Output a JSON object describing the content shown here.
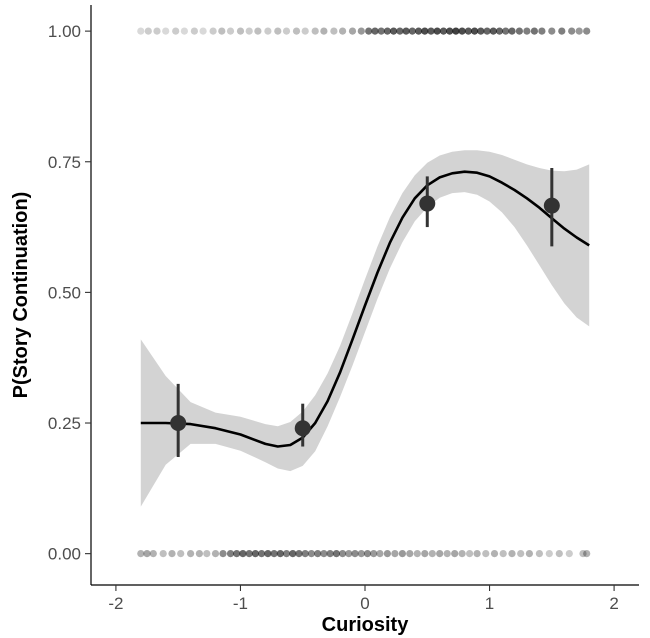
{
  "chart_data": {
    "type": "scatter",
    "title": "",
    "xlabel": "Curiosity",
    "ylabel": "P(Story Continuation)",
    "xlim": [
      -2.2,
      2.2
    ],
    "ylim": [
      -0.06,
      1.05
    ],
    "x_ticks": [
      -2,
      -1,
      0,
      1,
      2
    ],
    "x_tick_labels": [
      "-2",
      "-1",
      "0",
      "1",
      "2"
    ],
    "y_ticks": [
      0.0,
      0.25,
      0.5,
      0.75,
      1.0
    ],
    "y_tick_labels": [
      "0.00",
      "0.25",
      "0.50",
      "0.75",
      "1.00"
    ],
    "grid": false,
    "legend": "none",
    "colors": {
      "points": "#000000",
      "smooth_line": "#000000",
      "ribbon": "#d3d3d3",
      "bin_means": "#333333",
      "axis": "#000000",
      "tick_text": "#4d4d4d"
    },
    "series": [
      {
        "kind": "raw-observations-at-0",
        "x": [
          -1.8,
          -1.75,
          -1.7,
          -1.62,
          -1.55,
          -1.48,
          -1.4,
          -1.33,
          -1.27,
          -1.2,
          -1.14,
          -1.08,
          -1.03,
          -0.98,
          -0.93,
          -0.88,
          -0.83,
          -0.78,
          -0.73,
          -0.68,
          -0.63,
          -0.58,
          -0.53,
          -0.48,
          -0.43,
          -0.38,
          -0.33,
          -0.28,
          -0.23,
          -0.18,
          -0.13,
          -0.08,
          -0.03,
          0.02,
          0.07,
          0.12,
          0.18,
          0.24,
          0.3,
          0.36,
          0.42,
          0.48,
          0.54,
          0.6,
          0.66,
          0.72,
          0.78,
          0.84,
          0.9,
          0.97,
          1.04,
          1.11,
          1.18,
          1.25,
          1.32,
          1.4,
          1.48,
          1.56,
          1.64,
          1.75,
          1.78
        ],
        "y": [
          0,
          0,
          0,
          0,
          0,
          0,
          0,
          0,
          0,
          0,
          0,
          0,
          0,
          0,
          0,
          0,
          0,
          0,
          0,
          0,
          0,
          0,
          0,
          0,
          0,
          0,
          0,
          0,
          0,
          0,
          0,
          0,
          0,
          0,
          0,
          0,
          0,
          0,
          0,
          0,
          0,
          0,
          0,
          0,
          0,
          0,
          0,
          0,
          0,
          0,
          0,
          0,
          0,
          0,
          0,
          0,
          0,
          0,
          0,
          0,
          0
        ],
        "opacity": [
          0.3,
          0.35,
          0.3,
          0.25,
          0.3,
          0.25,
          0.3,
          0.3,
          0.25,
          0.3,
          0.45,
          0.5,
          0.55,
          0.6,
          0.55,
          0.6,
          0.55,
          0.6,
          0.55,
          0.6,
          0.5,
          0.6,
          0.55,
          0.5,
          0.45,
          0.5,
          0.45,
          0.5,
          0.55,
          0.45,
          0.4,
          0.45,
          0.4,
          0.45,
          0.4,
          0.35,
          0.4,
          0.35,
          0.4,
          0.35,
          0.3,
          0.35,
          0.3,
          0.35,
          0.3,
          0.35,
          0.3,
          0.25,
          0.3,
          0.25,
          0.3,
          0.25,
          0.3,
          0.25,
          0.3,
          0.25,
          0.2,
          0.25,
          0.2,
          0.25,
          0.3
        ]
      },
      {
        "kind": "raw-observations-at-1",
        "x": [
          -1.8,
          -1.74,
          -1.67,
          -1.6,
          -1.52,
          -1.45,
          -1.37,
          -1.3,
          -1.22,
          -1.15,
          -1.08,
          -1.0,
          -0.93,
          -0.86,
          -0.78,
          -0.7,
          -0.63,
          -0.55,
          -0.48,
          -0.4,
          -0.33,
          -0.25,
          -0.18,
          -0.1,
          -0.03,
          0.03,
          0.08,
          0.13,
          0.18,
          0.23,
          0.28,
          0.33,
          0.38,
          0.43,
          0.48,
          0.53,
          0.58,
          0.63,
          0.68,
          0.73,
          0.78,
          0.83,
          0.88,
          0.93,
          0.98,
          1.03,
          1.08,
          1.13,
          1.18,
          1.24,
          1.3,
          1.36,
          1.42,
          1.5,
          1.58,
          1.66,
          1.72,
          1.78
        ],
        "y": [
          1,
          1,
          1,
          1,
          1,
          1,
          1,
          1,
          1,
          1,
          1,
          1,
          1,
          1,
          1,
          1,
          1,
          1,
          1,
          1,
          1,
          1,
          1,
          1,
          1,
          1,
          1,
          1,
          1,
          1,
          1,
          1,
          1,
          1,
          1,
          1,
          1,
          1,
          1,
          1,
          1,
          1,
          1,
          1,
          1,
          1,
          1,
          1,
          1,
          1,
          1,
          1,
          1,
          1,
          1,
          1,
          1,
          1
        ],
        "opacity": [
          0.15,
          0.2,
          0.2,
          0.15,
          0.2,
          0.15,
          0.2,
          0.15,
          0.2,
          0.25,
          0.2,
          0.25,
          0.2,
          0.25,
          0.2,
          0.25,
          0.2,
          0.25,
          0.2,
          0.25,
          0.3,
          0.25,
          0.3,
          0.35,
          0.4,
          0.55,
          0.6,
          0.55,
          0.6,
          0.65,
          0.6,
          0.65,
          0.6,
          0.65,
          0.7,
          0.65,
          0.7,
          0.65,
          0.7,
          0.75,
          0.7,
          0.65,
          0.7,
          0.65,
          0.6,
          0.65,
          0.6,
          0.55,
          0.6,
          0.55,
          0.5,
          0.55,
          0.5,
          0.45,
          0.5,
          0.45,
          0.4,
          0.45
        ]
      },
      {
        "kind": "smooth",
        "x": [
          -1.8,
          -1.6,
          -1.4,
          -1.2,
          -1.0,
          -0.8,
          -0.7,
          -0.6,
          -0.5,
          -0.4,
          -0.3,
          -0.2,
          -0.1,
          0.0,
          0.1,
          0.2,
          0.3,
          0.4,
          0.5,
          0.6,
          0.7,
          0.8,
          0.9,
          1.0,
          1.1,
          1.2,
          1.3,
          1.4,
          1.5,
          1.6,
          1.7,
          1.8
        ],
        "y": [
          0.25,
          0.25,
          0.248,
          0.24,
          0.228,
          0.21,
          0.205,
          0.208,
          0.222,
          0.25,
          0.292,
          0.347,
          0.41,
          0.475,
          0.538,
          0.595,
          0.643,
          0.68,
          0.705,
          0.72,
          0.728,
          0.731,
          0.729,
          0.722,
          0.71,
          0.696,
          0.68,
          0.662,
          0.642,
          0.622,
          0.605,
          0.59
        ],
        "lower": [
          0.09,
          0.17,
          0.21,
          0.21,
          0.197,
          0.175,
          0.163,
          0.158,
          0.168,
          0.196,
          0.244,
          0.3,
          0.36,
          0.424,
          0.488,
          0.546,
          0.596,
          0.636,
          0.663,
          0.681,
          0.69,
          0.692,
          0.687,
          0.674,
          0.653,
          0.625,
          0.59,
          0.552,
          0.514,
          0.479,
          0.452,
          0.435
        ],
        "upper": [
          0.41,
          0.34,
          0.29,
          0.27,
          0.262,
          0.248,
          0.244,
          0.252,
          0.272,
          0.303,
          0.345,
          0.398,
          0.46,
          0.525,
          0.588,
          0.644,
          0.69,
          0.724,
          0.748,
          0.762,
          0.769,
          0.772,
          0.772,
          0.769,
          0.763,
          0.754,
          0.745,
          0.738,
          0.733,
          0.732,
          0.735,
          0.745
        ]
      },
      {
        "kind": "bin-means",
        "x": [
          -1.5,
          -0.5,
          0.5,
          1.5
        ],
        "y": [
          0.25,
          0.24,
          0.67,
          0.666
        ],
        "err_low": [
          0.185,
          0.205,
          0.625,
          0.588
        ],
        "err_high": [
          0.325,
          0.287,
          0.722,
          0.738
        ]
      }
    ]
  }
}
